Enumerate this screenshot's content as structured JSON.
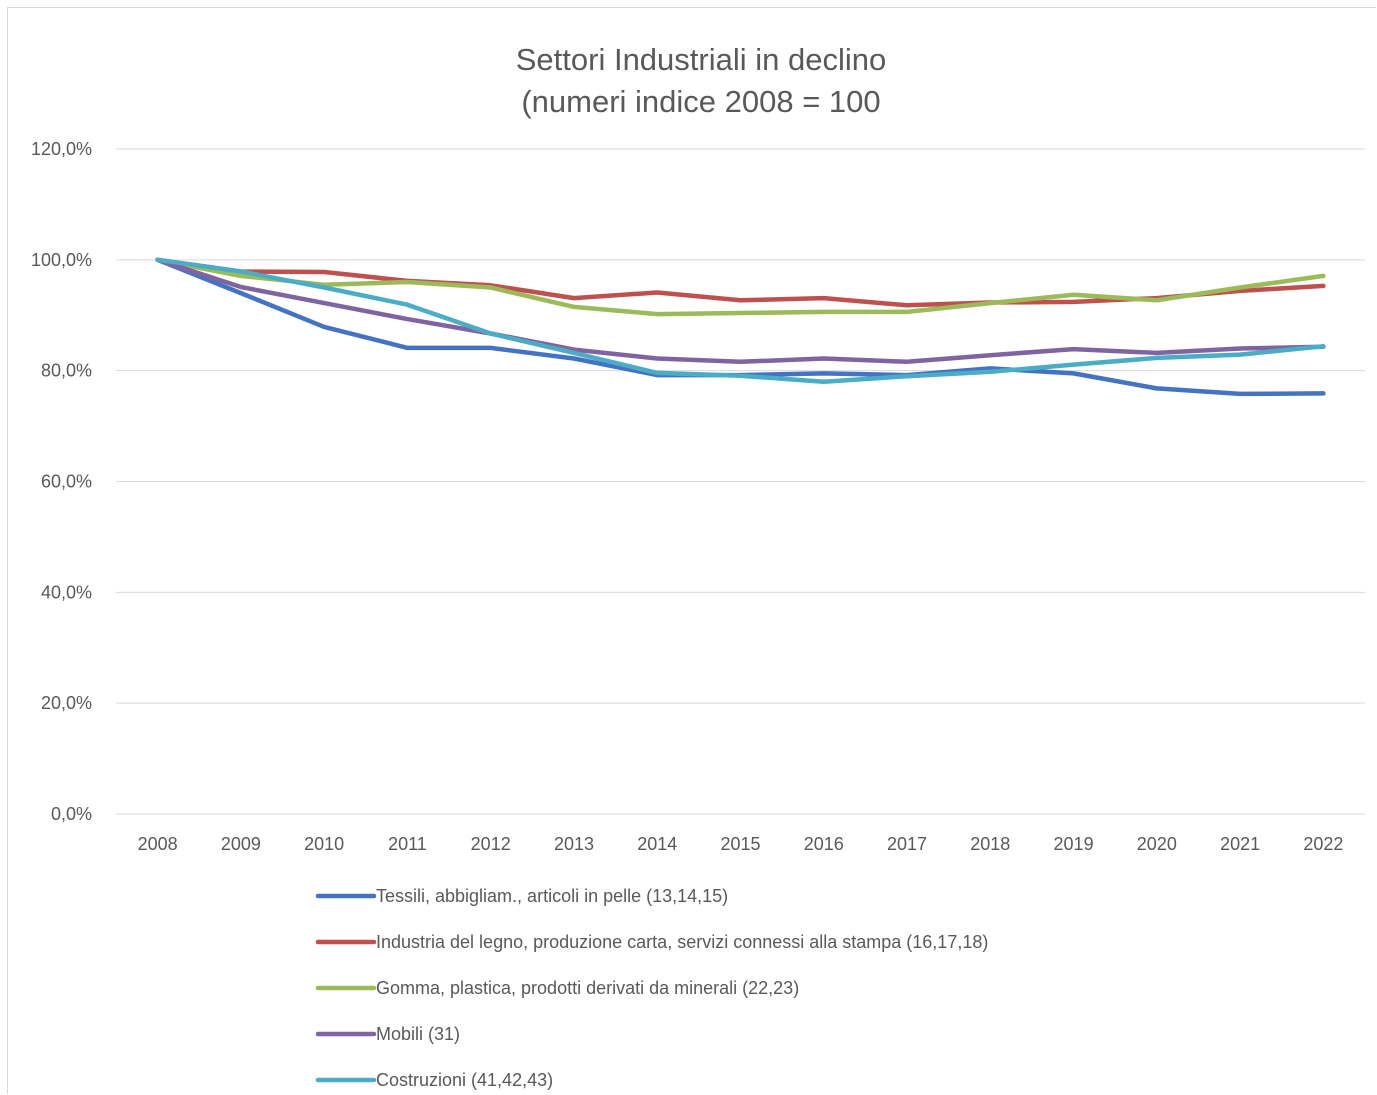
{
  "chart_data": {
    "type": "line",
    "title": [
      "Settori Industriali in declino",
      "(numeri indice 2008 = 100"
    ],
    "xlabel": "",
    "ylabel": "",
    "x": [
      "2008",
      "2009",
      "2010",
      "2011",
      "2012",
      "2013",
      "2014",
      "2015",
      "2016",
      "2017",
      "2018",
      "2019",
      "2020",
      "2021",
      "2022"
    ],
    "ylim": [
      0,
      120
    ],
    "yticks": [
      0,
      20,
      40,
      60,
      80,
      100,
      120
    ],
    "ytick_labels": [
      "0,0%",
      "20,0%",
      "40,0%",
      "60,0%",
      "80,0%",
      "100,0%",
      "120,0%"
    ],
    "grid": true,
    "legend_position": "bottom",
    "series": [
      {
        "name": "Tessili, abbigliam., articoli in pelle (13,14,15)",
        "color": "#4472c4",
        "values": [
          100,
          94.0,
          87.9,
          84.1,
          84.1,
          82.2,
          79.2,
          79.2,
          79.5,
          79.2,
          80.4,
          79.5,
          76.8,
          75.8,
          75.9
        ]
      },
      {
        "name": "Industria del legno, produzione carta, servizi connessi alla stampa (16,17,18)",
        "color": "#c0504d",
        "values": [
          100,
          97.9,
          97.8,
          96.2,
          95.4,
          93.1,
          94.1,
          92.7,
          93.1,
          91.8,
          92.3,
          92.4,
          93.1,
          94.4,
          95.3
        ]
      },
      {
        "name": "Gomma, plastica, prodotti derivati da minerali (22,23)",
        "color": "#9bbb59",
        "values": [
          100,
          97.1,
          95.5,
          96.0,
          95.0,
          91.5,
          90.2,
          90.4,
          90.6,
          90.6,
          92.2,
          93.7,
          92.7,
          95.0,
          97.1
        ]
      },
      {
        "name": "Mobili (31)",
        "color": "#8064a2",
        "values": [
          100,
          95.1,
          92.2,
          89.3,
          86.7,
          83.8,
          82.2,
          81.6,
          82.2,
          81.6,
          82.8,
          83.9,
          83.2,
          84.0,
          84.3
        ]
      },
      {
        "name": "Costruzioni (41,42,43)",
        "color": "#4bacc6",
        "values": [
          100,
          97.9,
          95.0,
          91.9,
          86.7,
          83.2,
          79.6,
          79.1,
          78.0,
          79.0,
          79.8,
          81.1,
          82.3,
          82.9,
          84.4
        ]
      }
    ]
  }
}
